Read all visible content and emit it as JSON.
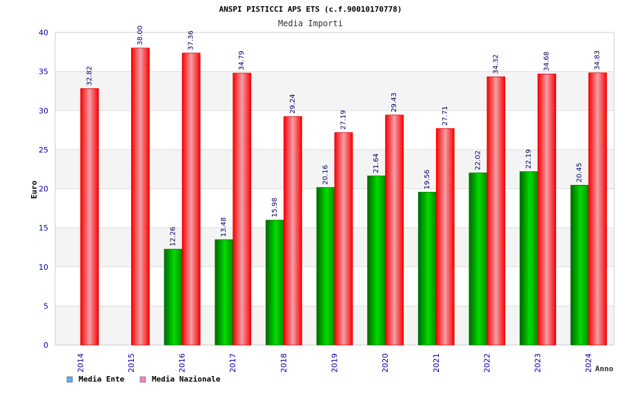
{
  "chart_data": {
    "type": "bar",
    "title": "ANSPI PISTICCI APS ETS (c.f.90010170778)",
    "subtitle": "Media Importi",
    "xlabel": "Anno",
    "ylabel": "Euro",
    "ylim": [
      0,
      40
    ],
    "yticks": [
      0,
      5,
      10,
      15,
      20,
      25,
      30,
      35,
      40
    ],
    "grid": true,
    "legend_position": "bottom-left",
    "categories": [
      "2014",
      "2015",
      "2016",
      "2017",
      "2018",
      "2019",
      "2020",
      "2021",
      "2022",
      "2023",
      "2024"
    ],
    "series": [
      {
        "name": "Media Ente",
        "color": "#00cc00",
        "legend_color": "#66aaee",
        "values": [
          null,
          null,
          12.26,
          13.48,
          15.98,
          20.16,
          21.64,
          19.56,
          22.02,
          22.19,
          20.45
        ],
        "labels": [
          "",
          "",
          "12.26",
          "13.48",
          "15.98",
          "20.16",
          "21.64",
          "19.56",
          "22.02",
          "22.19",
          "20.45"
        ]
      },
      {
        "name": "Media Nazionale",
        "color": "#ff0000",
        "legend_color": "#ee88bb",
        "values": [
          32.82,
          38.0,
          37.36,
          34.79,
          29.24,
          27.19,
          29.43,
          27.71,
          34.32,
          34.68,
          34.83
        ],
        "labels": [
          "32.82",
          "38.00",
          "37.36",
          "34.79",
          "29.24",
          "27.19",
          "29.43",
          "27.71",
          "34.32",
          "34.68",
          "34.83"
        ]
      }
    ]
  }
}
